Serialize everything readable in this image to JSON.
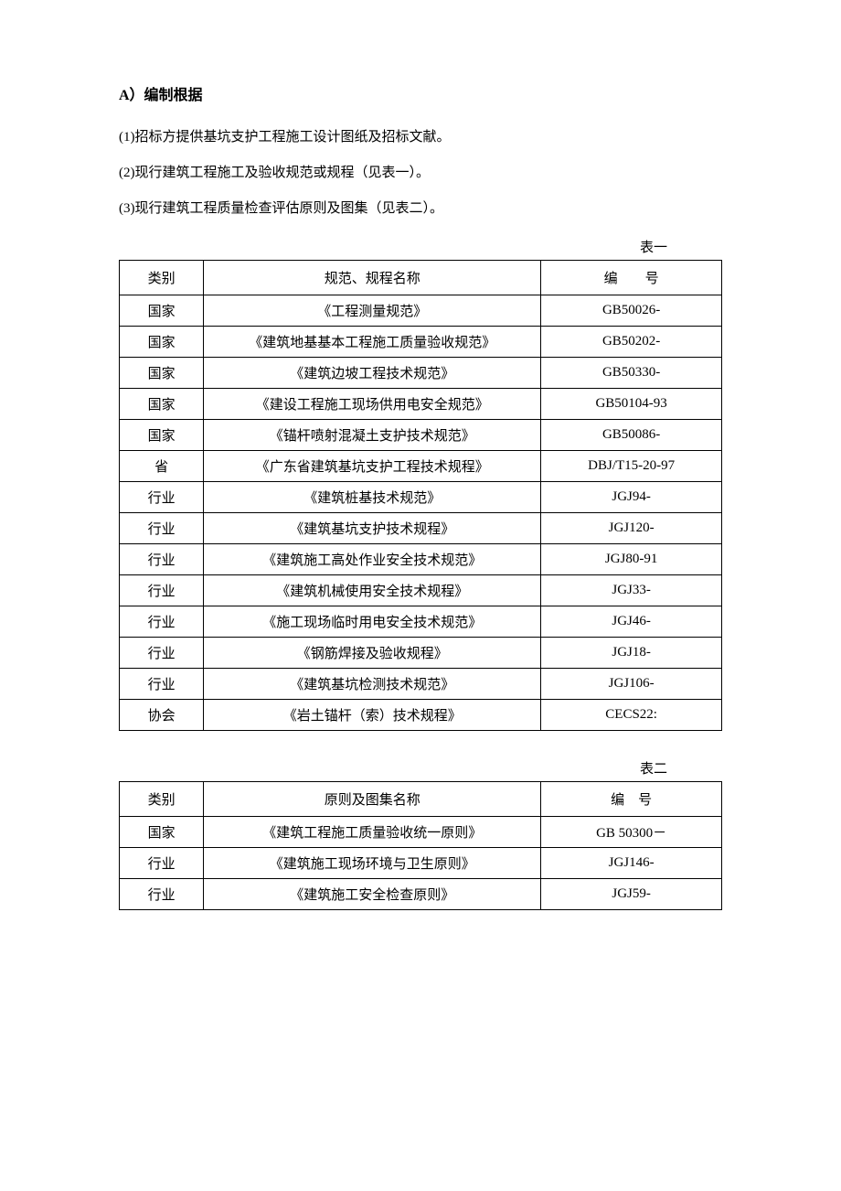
{
  "heading": "A）编制根据",
  "points": [
    "(1)招标方提供基坑支护工程施工设计图纸及招标文献。",
    "(2)现行建筑工程施工及验收规范或规程（见表一）。",
    "(3)现行建筑工程质量检查评估原则及图集（见表二）。"
  ],
  "table1": {
    "label": "表一",
    "headers": {
      "category": "类别",
      "name": "规范、规程名称",
      "code": "编　　号"
    },
    "rows": [
      {
        "category": "国家",
        "name": "《工程测量规范》",
        "code": "GB50026-"
      },
      {
        "category": "国家",
        "name": "《建筑地基基本工程施工质量验收规范》",
        "code": "GB50202-"
      },
      {
        "category": "国家",
        "name": "《建筑边坡工程技术规范》",
        "code": "GB50330-"
      },
      {
        "category": "国家",
        "name": "《建设工程施工现场供用电安全规范》",
        "code": "GB50104-93"
      },
      {
        "category": "国家",
        "name": "《锚杆喷射混凝土支护技术规范》",
        "code": "GB50086-"
      },
      {
        "category": "省",
        "name": "《广东省建筑基坑支护工程技术规程》",
        "code": "DBJ/T15-20-97"
      },
      {
        "category": "行业",
        "name": "《建筑桩基技术规范》",
        "code": "JGJ94-"
      },
      {
        "category": "行业",
        "name": "《建筑基坑支护技术规程》",
        "code": "JGJ120-"
      },
      {
        "category": "行业",
        "name": "《建筑施工高处作业安全技术规范》",
        "code": "JGJ80-91"
      },
      {
        "category": "行业",
        "name": "《建筑机械使用安全技术规程》",
        "code": "JGJ33-"
      },
      {
        "category": "行业",
        "name": "《施工现场临时用电安全技术规范》",
        "code": "JGJ46-"
      },
      {
        "category": "行业",
        "name": "《钢筋焊接及验收规程》",
        "code": "JGJ18-"
      },
      {
        "category": "行业",
        "name": "《建筑基坑检测技术规范》",
        "code": "JGJ106-"
      },
      {
        "category": "协会",
        "name": "《岩土锚杆（索）技术规程》",
        "code": "CECS22:"
      }
    ]
  },
  "table2": {
    "label": "表二",
    "headers": {
      "category": "类别",
      "name": "原则及图集名称",
      "code": "编　号"
    },
    "rows": [
      {
        "category": "国家",
        "name": "《建筑工程施工质量验收统一原则》",
        "code": "GB 50300－"
      },
      {
        "category": "行业",
        "name": "《建筑施工现场环境与卫生原则》",
        "code": "JGJ146-"
      },
      {
        "category": "行业",
        "name": "《建筑施工安全检查原则》",
        "code": "JGJ59-"
      }
    ]
  }
}
